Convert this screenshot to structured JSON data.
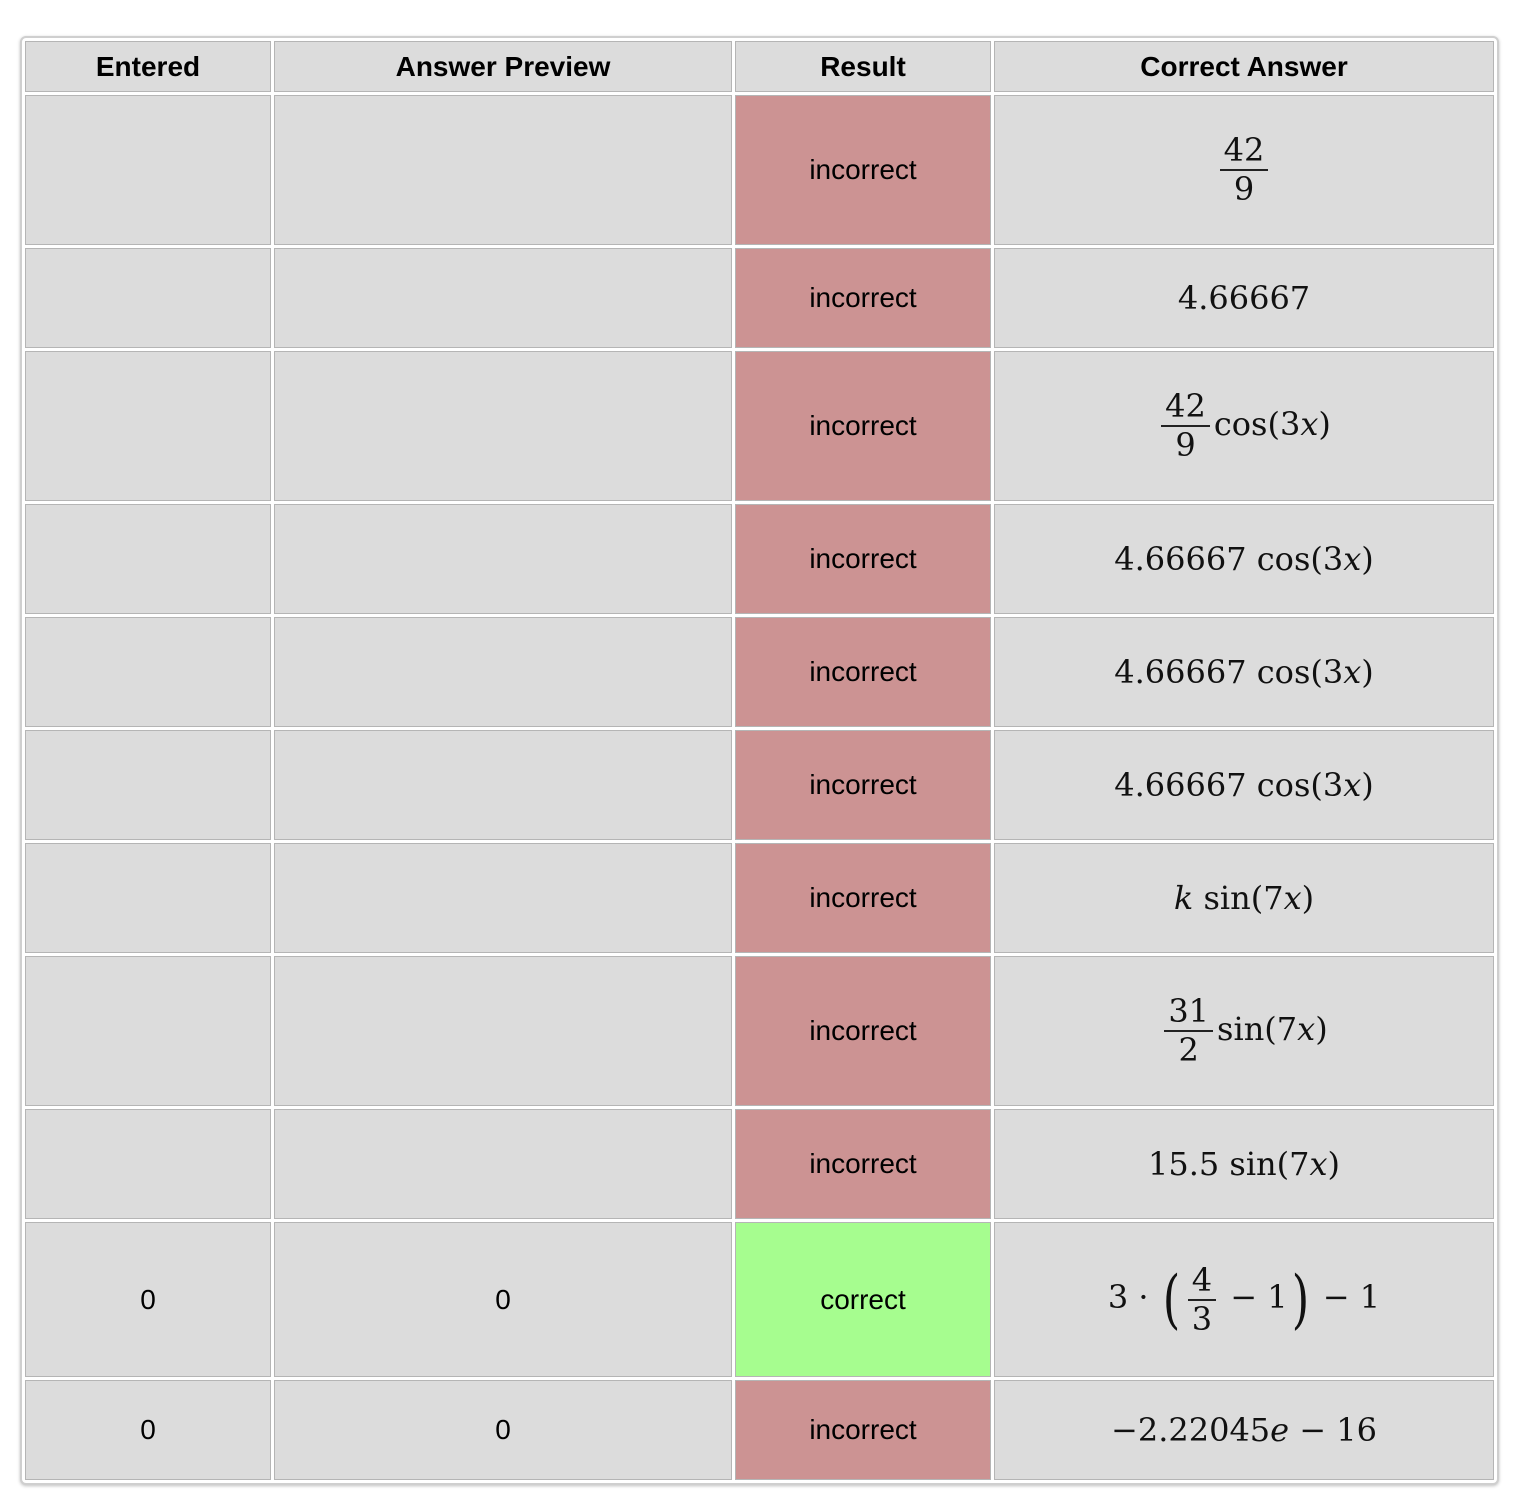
{
  "headers": {
    "entered": "Entered",
    "answer_preview": "Answer Preview",
    "result": "Result",
    "correct_answer": "Correct Answer"
  },
  "rows": [
    {
      "entered": "",
      "preview": "",
      "result": "incorrect",
      "correct": {
        "frac": {
          "num": "42",
          "den": "9"
        }
      }
    },
    {
      "entered": "",
      "preview": "",
      "result": "incorrect",
      "correct": {
        "text": "4.66667"
      }
    },
    {
      "entered": "",
      "preview": "",
      "result": "incorrect",
      "correct": {
        "frac": {
          "num": "42",
          "den": "9"
        },
        "suffix": "cos(3",
        "var": "x",
        "suffix_end": ")"
      }
    },
    {
      "entered": "",
      "preview": "",
      "result": "incorrect",
      "correct": {
        "text": "4.66667 cos(3",
        "var": "x",
        "suffix_end": ")"
      }
    },
    {
      "entered": "",
      "preview": "",
      "result": "incorrect",
      "correct": {
        "text": "4.66667 cos(3",
        "var": "x",
        "suffix_end": ")"
      }
    },
    {
      "entered": "",
      "preview": "",
      "result": "incorrect",
      "correct": {
        "text": "4.66667 cos(3",
        "var": "x",
        "suffix_end": ")"
      }
    },
    {
      "entered": "",
      "preview": "",
      "result": "incorrect",
      "correct": {
        "lead_var": "k",
        "text": " sin(7",
        "var": "x",
        "suffix_end": ")"
      }
    },
    {
      "entered": "",
      "preview": "",
      "result": "incorrect",
      "correct": {
        "frac": {
          "num": "31",
          "den": "2"
        },
        "suffix": "sin(7",
        "var": "x",
        "suffix_end": ")"
      }
    },
    {
      "entered": "",
      "preview": "",
      "result": "incorrect",
      "correct": {
        "text": "15.5 sin(7",
        "var": "x",
        "suffix_end": ")"
      }
    },
    {
      "entered": "0",
      "preview": "0",
      "result": "correct",
      "correct": {
        "paren_expr": {
          "pre": "3 · ",
          "frac": {
            "num": "4",
            "den": "3"
          },
          "inner_after": " − 1",
          "post": " − 1"
        }
      }
    },
    {
      "entered": "0",
      "preview": "0",
      "result": "incorrect",
      "correct": {
        "text": "−2.22045",
        "var": "e",
        "suffix_end": " − 16"
      }
    }
  ],
  "row_heights": [
    150,
    100,
    150,
    110,
    110,
    110,
    110,
    150,
    110,
    155,
    100
  ],
  "colors": {
    "cell_bg": "#dcdcdc",
    "incorrect_bg": "#cc9393",
    "correct_bg": "#a6fd8f",
    "result_text": "#1a2d8a"
  }
}
